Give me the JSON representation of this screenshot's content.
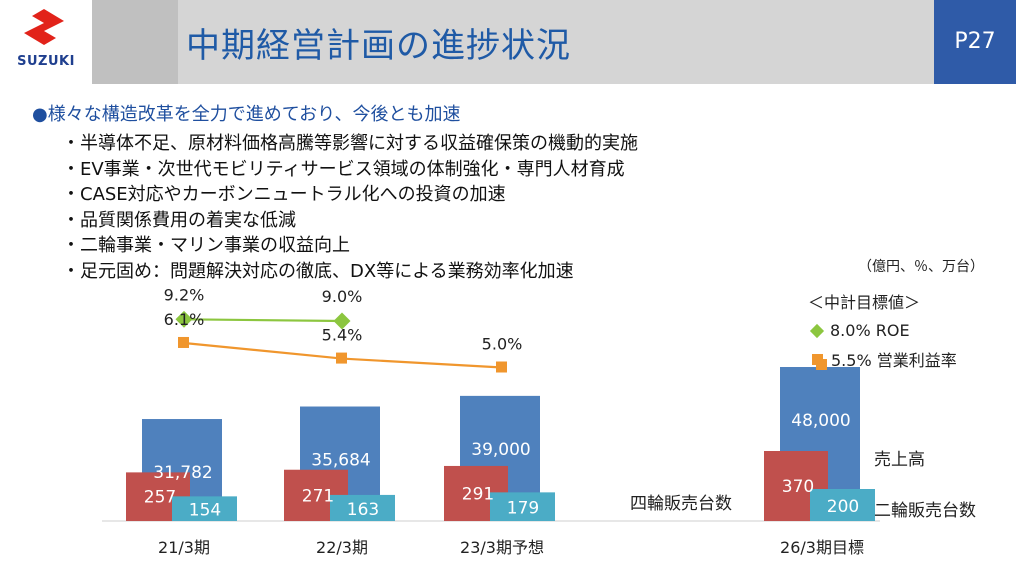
{
  "logo": {
    "text": "SUZUKI",
    "icon": "suzuki-s-icon",
    "color": "#1f3f8f"
  },
  "header": {
    "title": "中期経営計画の進捗状況",
    "page": "P27"
  },
  "headline": "●様々な構造改革を全力で進めており、今後とも加速",
  "bullets": [
    "・半導体不足、原材料価格高騰等影響に対する収益確保策の機動的実施",
    "・EV事業・次世代モビリティサービス領域の体制強化・専門人材育成",
    "・CASE対応やカーボンニュートラル化への投資の加速",
    "・品質関係費用の着実な低減",
    "・二輪事業・マリン事業の収益向上",
    "・足元固め：問題解決対応の徹底、DX等による業務効率化加速"
  ],
  "units_note": "（億円、％、万台）",
  "targets": {
    "title": "＜中計目標値＞",
    "roe": "8.0% ROE",
    "margin": "5.5% 営業利益率"
  },
  "side_labels": {
    "four": "四輪販売台数",
    "sales": "売上高",
    "two": "二輪販売台数"
  },
  "colors": {
    "sales": "#4f81bd",
    "four": "#c0504d",
    "two": "#4bacc6",
    "roe": "#8cc63f",
    "margin": "#f0962d"
  },
  "chart_data": {
    "type": "bar",
    "categories": [
      "21/3期",
      "22/3期",
      "23/3期予想",
      "26/3期目標"
    ],
    "series": [
      {
        "name": "売上高",
        "type": "bar",
        "values": [
          31782,
          35684,
          39000,
          48000
        ],
        "labels": [
          "31,782",
          "35,684",
          "39,000",
          "48,000"
        ]
      },
      {
        "name": "四輪販売台数",
        "type": "bar",
        "values": [
          257,
          271,
          291,
          370
        ],
        "labels": [
          "257",
          "271",
          "291",
          "370"
        ]
      },
      {
        "name": "二輪販売台数",
        "type": "bar",
        "values": [
          154,
          163,
          179,
          200
        ],
        "labels": [
          "154",
          "163",
          "179",
          "200"
        ]
      },
      {
        "name": "ROE",
        "type": "line",
        "values": [
          9.2,
          9.0,
          null,
          8.0
        ],
        "labels": [
          "9.2%",
          "9.0%",
          "",
          "8.0%"
        ]
      },
      {
        "name": "営業利益率",
        "type": "line",
        "values": [
          6.1,
          5.4,
          5.0,
          5.5
        ],
        "labels": [
          "6.1%",
          "5.4%",
          "5.0%",
          "5.5%"
        ]
      }
    ],
    "xlabel": "",
    "ylabel": ""
  }
}
